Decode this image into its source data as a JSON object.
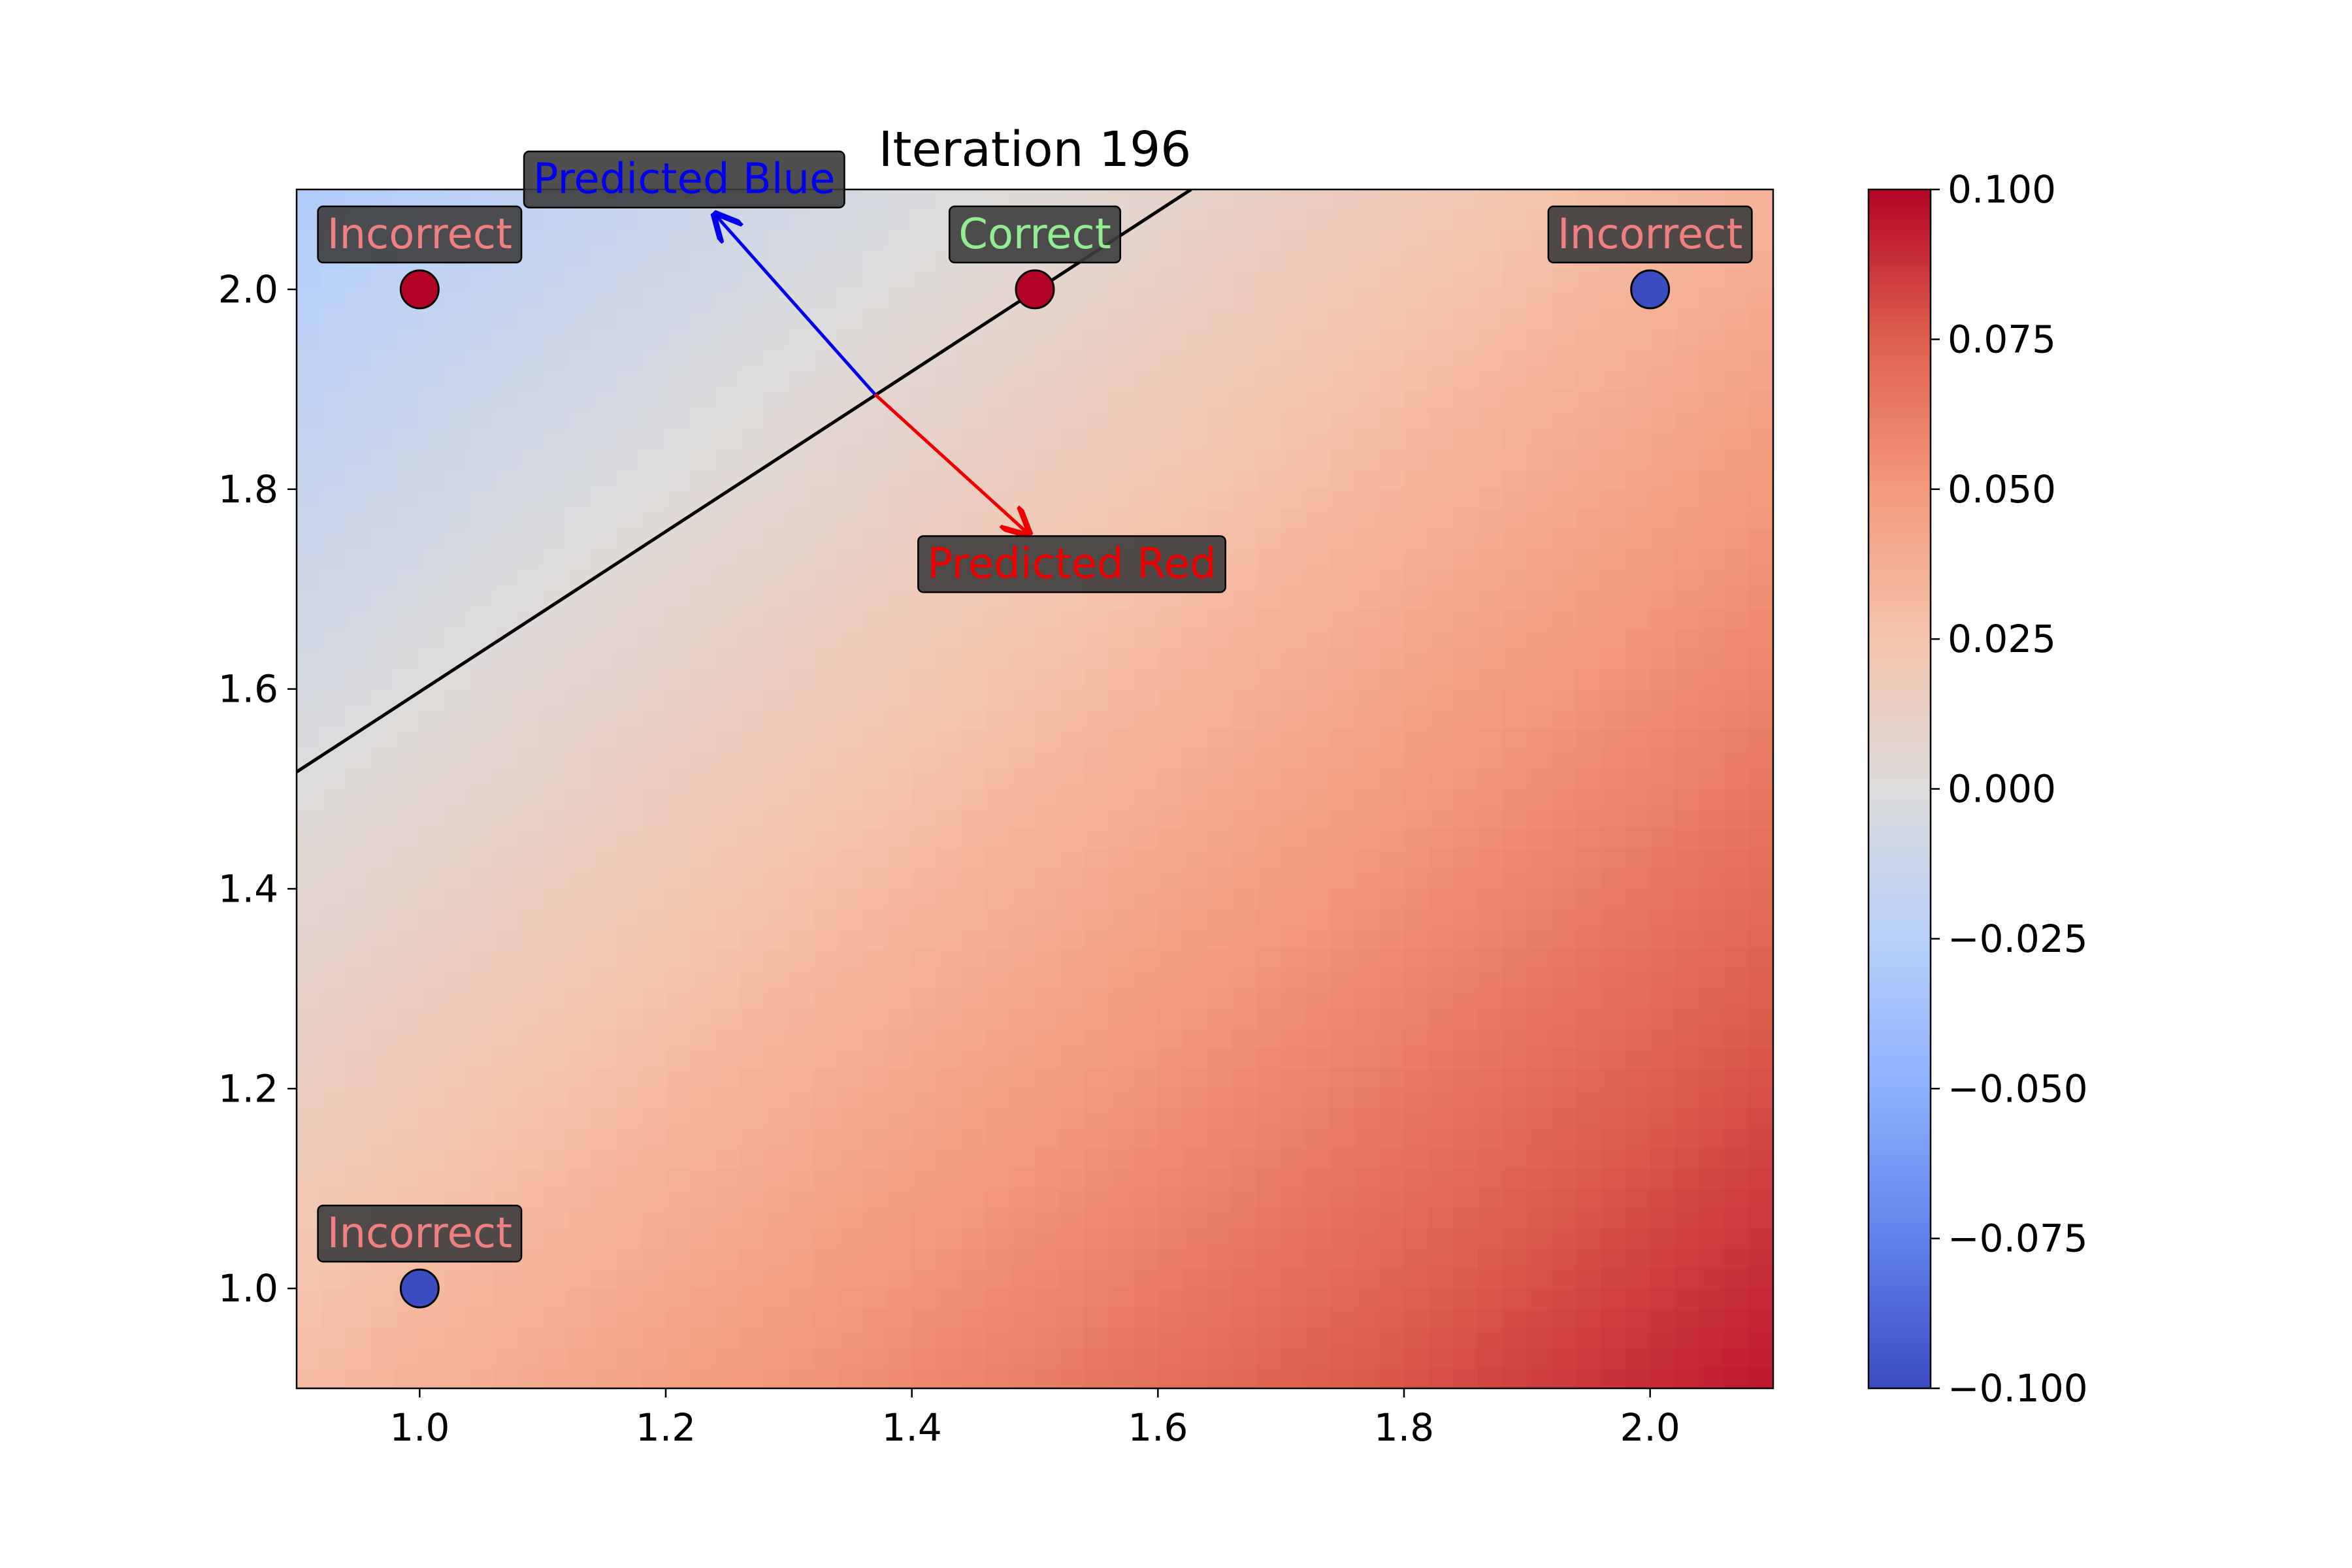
{
  "chart_data": {
    "type": "heatmap",
    "title": "Iteration 196",
    "xlim": [
      0.9,
      2.1
    ],
    "ylim": [
      0.9,
      2.1
    ],
    "x_ticks": [
      1.0,
      1.2,
      1.4,
      1.6,
      1.8,
      2.0
    ],
    "y_ticks": [
      1.0,
      1.2,
      1.4,
      1.6,
      1.8,
      2.0
    ],
    "x_tick_labels": [
      "1.0",
      "1.2",
      "1.4",
      "1.6",
      "1.8",
      "2.0"
    ],
    "y_tick_labels": [
      "1.0",
      "1.2",
      "1.4",
      "1.6",
      "1.8",
      "2.0"
    ],
    "heatmap": {
      "colormap": "coolwarm",
      "value_at_corners": {
        "x0.9_y2.1": -0.03,
        "x2.1_y2.1": 0.035,
        "x0.9_y0.9": 0.03,
        "x2.1_y0.9": 0.095
      },
      "vmin": -0.1,
      "vmax": 0.1
    },
    "decision_boundary": {
      "points": [
        [
          0.9,
          1.517
        ],
        [
          1.627,
          2.1
        ]
      ],
      "color": "#000000"
    },
    "points": [
      {
        "x": 1.0,
        "y": 2.0,
        "class": "red",
        "label": "Incorrect"
      },
      {
        "x": 1.5,
        "y": 2.0,
        "class": "red",
        "label": "Correct"
      },
      {
        "x": 2.0,
        "y": 2.0,
        "class": "blue",
        "label": "Incorrect"
      },
      {
        "x": 1.0,
        "y": 1.0,
        "class": "blue",
        "label": "Incorrect"
      }
    ],
    "arrows": [
      {
        "from": [
          1.37,
          1.895
        ],
        "to": [
          1.24,
          2.075
        ],
        "label": "Predicted Blue",
        "label_at": [
          1.215,
          2.11
        ],
        "color": "#0000ee"
      },
      {
        "from": [
          1.37,
          1.895
        ],
        "to": [
          1.495,
          1.755
        ],
        "label": "Predicted Red",
        "label_at": [
          1.53,
          1.725
        ],
        "color": "#ee0000"
      }
    ],
    "colorbar": {
      "ticks": [
        0.1,
        0.075,
        0.05,
        0.025,
        0.0,
        -0.025,
        -0.05,
        -0.075,
        -0.1
      ],
      "tick_labels": [
        "0.100",
        "0.075",
        "0.050",
        "0.025",
        "0.000",
        "−0.025",
        "−0.050",
        "−0.075",
        "−0.100"
      ]
    },
    "grid": false,
    "colors": {
      "correct_text": "#90ee90",
      "incorrect_text": "#f08080",
      "label_box": "#3c3c3c",
      "point_red": "#b40426",
      "point_blue": "#3b4cc0"
    }
  }
}
